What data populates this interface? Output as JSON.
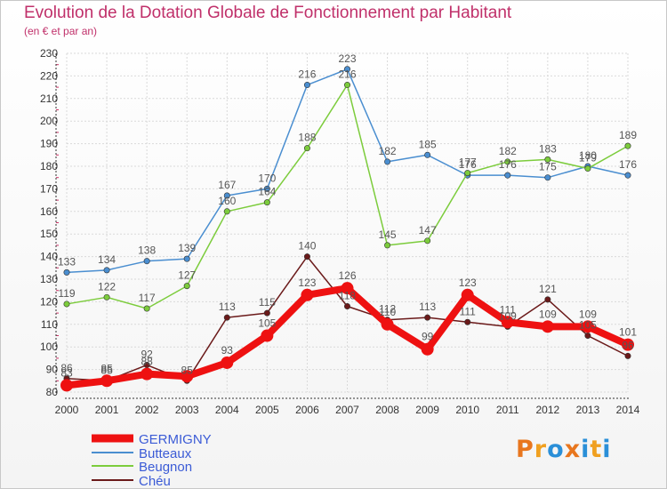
{
  "header": {
    "title": "Evolution de la Dotation Globale de Fonctionnement par Habitant",
    "subtitle": "(en € et par an)"
  },
  "logo": {
    "text": "Proxiti",
    "colors": [
      "#e8761e",
      "#f0a020",
      "#2a8fd8",
      "#e8761e",
      "#2a8fd8",
      "#f0a020",
      "#2a8fd8"
    ]
  },
  "chart_data": {
    "type": "line",
    "x": [
      "2000",
      "2001",
      "2002",
      "2003",
      "2004",
      "2005",
      "2006",
      "2007",
      "2008",
      "2009",
      "2010",
      "2011",
      "2012",
      "2013",
      "2014"
    ],
    "ylim": [
      80,
      230
    ],
    "yticks": [
      "80",
      "90",
      "100",
      "110",
      "120",
      "130",
      "140",
      "150",
      "160",
      "170",
      "180",
      "190",
      "200",
      "210",
      "220",
      "230"
    ],
    "grid": true,
    "legend_position": "bottom-left",
    "series": [
      {
        "name": "GERMIGNY",
        "color": "#ee1111",
        "values": [
          83,
          85,
          88,
          87,
          93,
          105,
          123,
          126,
          110,
          99,
          123,
          111,
          109,
          109,
          101
        ],
        "labels": [
          "83",
          "85",
          "88",
          "",
          "93",
          "105",
          "123",
          "126",
          "110",
          "99",
          "123",
          "111",
          "109",
          "109",
          "101"
        ]
      },
      {
        "name": "Butteaux",
        "color": "#4a8ed0",
        "values": [
          133,
          134,
          138,
          139,
          167,
          170,
          216,
          223,
          182,
          185,
          176,
          176,
          175,
          180,
          176
        ],
        "labels": [
          "133",
          "134",
          "138",
          "139",
          "167",
          "170",
          "216",
          "223",
          "182",
          "185",
          "176",
          "176",
          "175",
          "180",
          "176"
        ]
      },
      {
        "name": "Beugnon",
        "color": "#7ccc3c",
        "values": [
          119,
          122,
          117,
          127,
          160,
          164,
          188,
          216,
          145,
          147,
          177,
          182,
          183,
          179,
          189
        ],
        "labels": [
          "119",
          "122",
          "117",
          "127",
          "160",
          "164",
          "188",
          "216",
          "145",
          "147",
          "177",
          "182",
          "183",
          "179",
          "189"
        ]
      },
      {
        "name": "Chéu",
        "color": "#6b1a1a",
        "values": [
          86,
          85,
          92,
          85,
          113,
          115,
          140,
          118,
          112,
          113,
          111,
          109,
          121,
          105,
          96
        ],
        "labels": [
          "86",
          "85",
          "92",
          "85",
          "113",
          "115",
          "140",
          "118",
          "112",
          "113",
          "111",
          "109",
          "121",
          "105",
          "96"
        ]
      }
    ]
  }
}
